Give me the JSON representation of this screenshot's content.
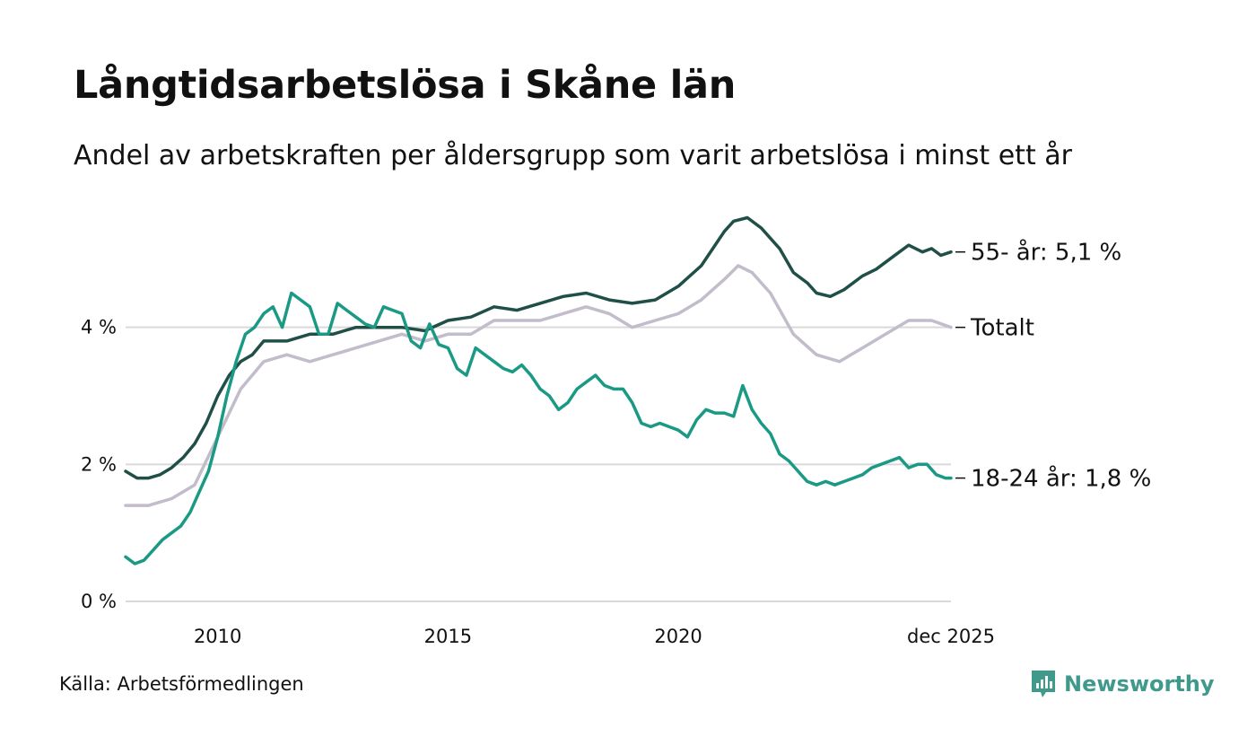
{
  "title": "Långtidsarbetslösa i Skåne län",
  "subtitle": "Andel av arbetskraften per åldersgrupp som varit arbetslösa i minst ett år",
  "source": "Källa: Arbetsförmedlingen",
  "logo_text": "Newsworthy",
  "colors": {
    "s55": "#1f4f47",
    "total": "#c2bccb",
    "s1824": "#1a9985",
    "grid": "#d9d9d9",
    "logo": "#3f9a8c"
  },
  "chart_data": {
    "type": "line",
    "title": "Långtidsarbetslösa i Skåne län",
    "xlabel": "",
    "ylabel": "",
    "ylim": [
      0,
      6
    ],
    "xlim": [
      2008.0,
      2025.92
    ],
    "grid": true,
    "y_ticks": [
      {
        "value": 0,
        "label": "0 %"
      },
      {
        "value": 2,
        "label": "2 %"
      },
      {
        "value": 4,
        "label": "4 %"
      }
    ],
    "x_ticks": [
      {
        "value": 2010,
        "label": "2010"
      },
      {
        "value": 2015,
        "label": "2015"
      },
      {
        "value": 2020,
        "label": "2020"
      },
      {
        "value": 2025.92,
        "label": "dec 2025"
      }
    ],
    "series": [
      {
        "name": "Totalt",
        "key": "total",
        "end_label": "Totalt",
        "x": [
          2008.0,
          2008.5,
          2009.0,
          2009.5,
          2010.0,
          2010.5,
          2011.0,
          2011.5,
          2012.0,
          2012.5,
          2013.0,
          2013.5,
          2014.0,
          2014.5,
          2015.0,
          2015.5,
          2016.0,
          2016.5,
          2017.0,
          2017.5,
          2018.0,
          2018.5,
          2019.0,
          2019.5,
          2020.0,
          2020.5,
          2021.0,
          2021.3,
          2021.6,
          2022.0,
          2022.5,
          2023.0,
          2023.5,
          2024.0,
          2024.5,
          2025.0,
          2025.5,
          2025.92
        ],
        "values": [
          1.4,
          1.4,
          1.5,
          1.7,
          2.4,
          3.1,
          3.5,
          3.6,
          3.5,
          3.6,
          3.7,
          3.8,
          3.9,
          3.8,
          3.9,
          3.9,
          4.1,
          4.1,
          4.1,
          4.2,
          4.3,
          4.2,
          4.0,
          4.1,
          4.2,
          4.4,
          4.7,
          4.9,
          4.8,
          4.5,
          3.9,
          3.6,
          3.5,
          3.7,
          3.9,
          4.1,
          4.1,
          4.0
        ]
      },
      {
        "name": "55- år",
        "key": "s55",
        "end_label": "55- år: 5,1 %",
        "x": [
          2008.0,
          2008.25,
          2008.5,
          2008.75,
          2009.0,
          2009.25,
          2009.5,
          2009.75,
          2010.0,
          2010.25,
          2010.5,
          2010.75,
          2011.0,
          2011.5,
          2012.0,
          2012.5,
          2013.0,
          2013.5,
          2014.0,
          2014.5,
          2015.0,
          2015.5,
          2016.0,
          2016.5,
          2017.0,
          2017.5,
          2018.0,
          2018.5,
          2019.0,
          2019.5,
          2020.0,
          2020.5,
          2020.8,
          2021.0,
          2021.2,
          2021.5,
          2021.8,
          2022.0,
          2022.2,
          2022.5,
          2022.8,
          2023.0,
          2023.3,
          2023.6,
          2024.0,
          2024.3,
          2024.6,
          2024.8,
          2025.0,
          2025.3,
          2025.5,
          2025.7,
          2025.92
        ],
        "values": [
          1.9,
          1.8,
          1.8,
          1.85,
          1.95,
          2.1,
          2.3,
          2.6,
          3.0,
          3.3,
          3.5,
          3.6,
          3.8,
          3.8,
          3.9,
          3.9,
          4.0,
          4.0,
          4.0,
          3.95,
          4.1,
          4.15,
          4.3,
          4.25,
          4.35,
          4.45,
          4.5,
          4.4,
          4.35,
          4.4,
          4.6,
          4.9,
          5.2,
          5.4,
          5.55,
          5.6,
          5.45,
          5.3,
          5.15,
          4.8,
          4.65,
          4.5,
          4.45,
          4.55,
          4.75,
          4.85,
          5.0,
          5.1,
          5.2,
          5.1,
          5.15,
          5.05,
          5.1
        ]
      },
      {
        "name": "18-24 år",
        "key": "s1824",
        "end_label": "18-24 år: 1,8 %",
        "x": [
          2008.0,
          2008.2,
          2008.4,
          2008.6,
          2008.8,
          2009.0,
          2009.2,
          2009.4,
          2009.6,
          2009.8,
          2010.0,
          2010.2,
          2010.4,
          2010.6,
          2010.8,
          2011.0,
          2011.2,
          2011.4,
          2011.6,
          2011.8,
          2012.0,
          2012.2,
          2012.4,
          2012.6,
          2012.8,
          2013.0,
          2013.2,
          2013.4,
          2013.6,
          2013.8,
          2014.0,
          2014.2,
          2014.4,
          2014.6,
          2014.8,
          2015.0,
          2015.2,
          2015.4,
          2015.6,
          2015.8,
          2016.0,
          2016.2,
          2016.4,
          2016.6,
          2016.8,
          2017.0,
          2017.2,
          2017.4,
          2017.6,
          2017.8,
          2018.0,
          2018.2,
          2018.4,
          2018.6,
          2018.8,
          2019.0,
          2019.2,
          2019.4,
          2019.6,
          2019.8,
          2020.0,
          2020.2,
          2020.4,
          2020.6,
          2020.8,
          2021.0,
          2021.2,
          2021.4,
          2021.6,
          2021.8,
          2022.0,
          2022.2,
          2022.4,
          2022.6,
          2022.8,
          2023.0,
          2023.2,
          2023.4,
          2023.6,
          2023.8,
          2024.0,
          2024.2,
          2024.4,
          2024.6,
          2024.8,
          2025.0,
          2025.2,
          2025.4,
          2025.6,
          2025.8,
          2025.92
        ],
        "values": [
          0.65,
          0.55,
          0.6,
          0.75,
          0.9,
          1.0,
          1.1,
          1.3,
          1.6,
          1.9,
          2.4,
          3.0,
          3.5,
          3.9,
          4.0,
          4.2,
          4.3,
          4.0,
          4.5,
          4.4,
          4.3,
          3.9,
          3.9,
          4.35,
          4.25,
          4.15,
          4.05,
          4.0,
          4.3,
          4.25,
          4.2,
          3.8,
          3.7,
          4.05,
          3.75,
          3.7,
          3.4,
          3.3,
          3.7,
          3.6,
          3.5,
          3.4,
          3.35,
          3.45,
          3.3,
          3.1,
          3.0,
          2.8,
          2.9,
          3.1,
          3.2,
          3.3,
          3.15,
          3.1,
          3.1,
          2.9,
          2.6,
          2.55,
          2.6,
          2.55,
          2.5,
          2.4,
          2.65,
          2.8,
          2.75,
          2.75,
          2.7,
          3.15,
          2.8,
          2.6,
          2.45,
          2.15,
          2.05,
          1.9,
          1.75,
          1.7,
          1.75,
          1.7,
          1.75,
          1.8,
          1.85,
          1.95,
          2.0,
          2.05,
          2.1,
          1.95,
          2.0,
          2.0,
          1.85,
          1.8,
          1.8
        ]
      }
    ]
  }
}
